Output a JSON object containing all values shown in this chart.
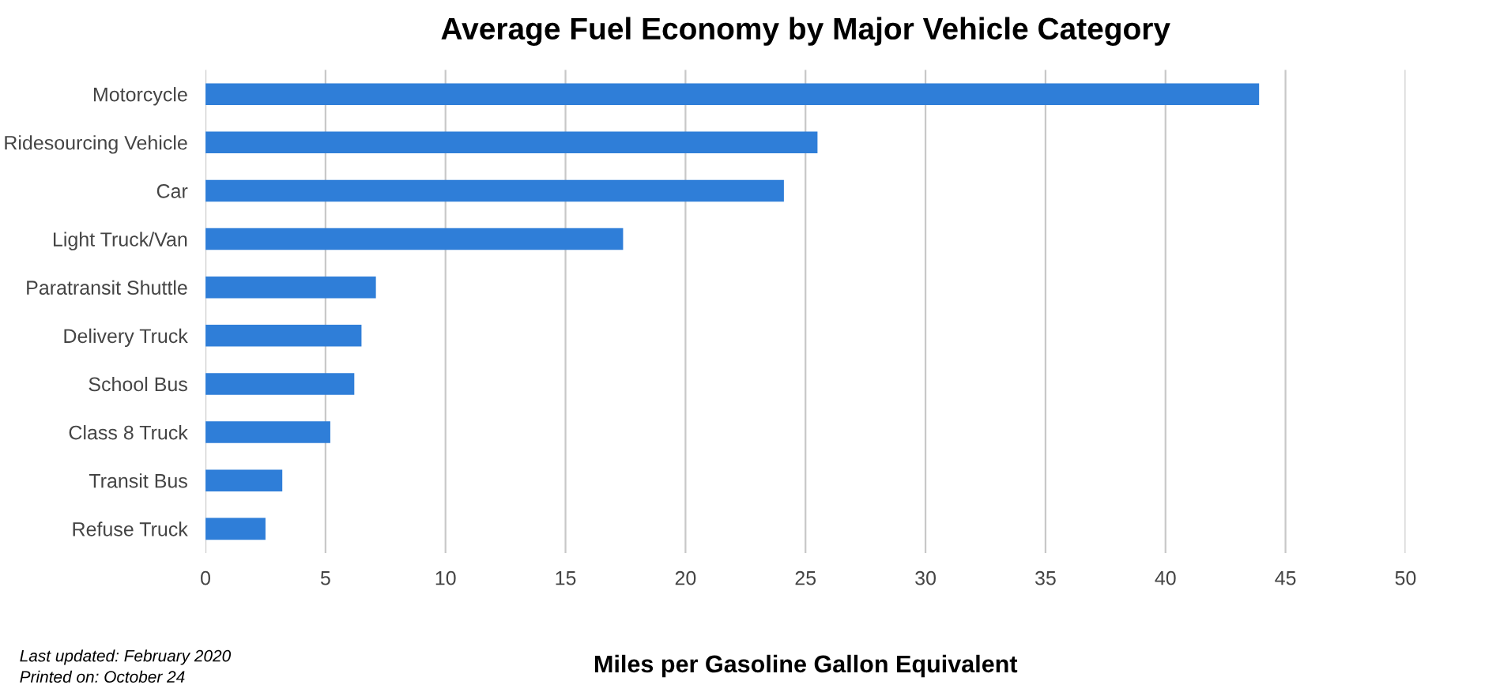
{
  "chart_data": {
    "type": "bar",
    "orientation": "horizontal",
    "title": "Average Fuel Economy by Major Vehicle Category",
    "xlabel": "Miles per Gasoline Gallon Equivalent",
    "categories": [
      "Motorcycle",
      "Ridesourcing Vehicle",
      "Car",
      "Light Truck/Van",
      "Paratransit Shuttle",
      "Delivery Truck",
      "School Bus",
      "Class 8 Truck",
      "Transit Bus",
      "Refuse Truck"
    ],
    "values": [
      43.9,
      25.5,
      24.1,
      17.4,
      7.1,
      6.5,
      6.2,
      5.2,
      3.2,
      2.5
    ],
    "color": "#2f7ed8",
    "xlim": [
      0,
      50
    ],
    "xticks": [
      0,
      5,
      10,
      15,
      20,
      25,
      30,
      35,
      40,
      45,
      50
    ],
    "grid": "x",
    "legend": false,
    "annotations": [
      "Last updated: February 2020",
      "Printed on: October 24"
    ]
  }
}
